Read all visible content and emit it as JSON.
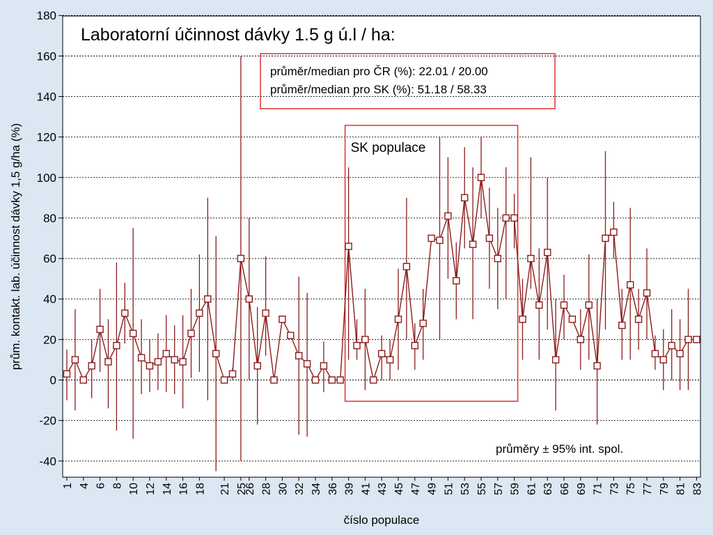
{
  "chart_data": {
    "type": "line",
    "title": "Laboratorní účinnost dávky 1.5 g ú.l / ha:",
    "xlabel": "číslo populace",
    "ylabel": "prům. kontakt. lab. účinnost dávky 1,5 g/ha (%)",
    "ylim": [
      -45,
      180
    ],
    "yticks": [
      -40,
      -20,
      0,
      20,
      40,
      60,
      80,
      100,
      120,
      140,
      160,
      180
    ],
    "stats_box": [
      "průměr/median pro ČR (%): 22.01 / 20.00",
      "průměr/median pro SK (%): 51.18 / 58.33"
    ],
    "region_label": "SK populace",
    "region_start": "39",
    "region_end": "59",
    "legend_note": "průměry ± 95% int. spol.",
    "colors": {
      "series": "#8b1a1a",
      "highlight": "#e03030",
      "background": "#dbe7f3",
      "plot": "#ffffff"
    },
    "categories": [
      "1",
      "2",
      "4",
      "5",
      "6",
      "7",
      "8",
      "9",
      "10",
      "11",
      "12",
      "13",
      "14",
      "15",
      "16",
      "17",
      "18",
      "19",
      "20",
      "21",
      "22",
      "25",
      "26",
      "27",
      "28",
      "29",
      "30",
      "31",
      "32",
      "33",
      "34",
      "35",
      "36",
      "38",
      "39",
      "40",
      "41",
      "42",
      "43",
      "44",
      "45",
      "46",
      "47",
      "48",
      "49",
      "50",
      "51",
      "52",
      "53",
      "54",
      "55",
      "56",
      "57",
      "58",
      "59",
      "60",
      "61",
      "62",
      "63",
      "64",
      "66",
      "67",
      "69",
      "70",
      "71",
      "72",
      "73",
      "74",
      "75",
      "76",
      "77",
      "78",
      "79",
      "80",
      "81",
      "82",
      "83"
    ],
    "tick_labels": [
      "1",
      "4",
      "6",
      "8",
      "10",
      "12",
      "14",
      "16",
      "18",
      "21",
      "25",
      "26",
      "28",
      "30",
      "32",
      "34",
      "36",
      "39",
      "41",
      "43",
      "45",
      "47",
      "49",
      "51",
      "53",
      "55",
      "57",
      "59",
      "61",
      "63",
      "66",
      "69",
      "71",
      "73",
      "75",
      "77",
      "79",
      "81",
      "83"
    ],
    "tick_positions": [
      "1",
      "4",
      "6",
      "8",
      "10",
      "12",
      "14",
      "16",
      "18",
      "21",
      "25",
      "26",
      "28",
      "30",
      "32",
      "34",
      "36",
      "39",
      "41",
      "43",
      "45",
      "47",
      "49",
      "51",
      "53",
      "55",
      "57",
      "59",
      "61",
      "63",
      "66",
      "69",
      "71",
      "73",
      "75",
      "77",
      "79",
      "81",
      "83"
    ],
    "series": [
      {
        "mean": [
          3,
          10,
          0,
          7,
          25,
          9,
          17,
          33,
          23,
          11,
          7,
          9,
          13,
          10,
          9,
          23,
          33,
          40,
          13,
          0,
          3,
          60,
          40,
          7,
          33,
          0,
          30,
          22,
          12,
          8,
          0,
          7,
          0,
          0,
          66,
          17,
          20,
          0,
          13,
          10,
          30,
          56,
          17,
          28,
          70,
          69,
          81,
          49,
          90,
          67,
          100,
          70,
          60,
          80,
          80,
          30,
          60,
          37,
          63,
          10,
          37,
          30,
          20,
          37,
          7,
          70,
          73,
          27,
          47,
          30,
          43,
          13,
          10,
          17,
          13,
          20,
          20
        ],
        "lower": [
          -10,
          -15,
          0,
          -9,
          4,
          -14,
          -25,
          18,
          -29,
          -7,
          -6,
          -5,
          -6,
          -7,
          -14,
          1,
          4,
          -10,
          -45,
          0,
          0,
          -40,
          0,
          -22,
          12,
          0,
          30,
          22,
          -27,
          -28,
          0,
          -6,
          0,
          0,
          10,
          10,
          -5,
          0,
          0,
          0,
          5,
          20,
          5,
          10,
          70,
          20,
          50,
          30,
          65,
          30,
          80,
          45,
          35,
          40,
          65,
          10,
          45,
          10,
          25,
          -15,
          20,
          30,
          5,
          10,
          -22,
          25,
          60,
          10,
          10,
          15,
          20,
          5,
          -5,
          0,
          -5,
          -5,
          20
        ],
        "upper": [
          15,
          35,
          0,
          20,
          45,
          30,
          58,
          48,
          75,
          30,
          20,
          23,
          32,
          27,
          32,
          45,
          62,
          90,
          71,
          0,
          6,
          160,
          80,
          36,
          61,
          0,
          30,
          22,
          51,
          43,
          0,
          19,
          0,
          0,
          105,
          30,
          45,
          0,
          22,
          20,
          55,
          90,
          28,
          45,
          70,
          120,
          110,
          68,
          115,
          105,
          120,
          95,
          85,
          105,
          92,
          50,
          110,
          65,
          100,
          40,
          52,
          30,
          35,
          62,
          40,
          113,
          88,
          45,
          85,
          45,
          65,
          22,
          25,
          35,
          30,
          45,
          20
        ]
      }
    ]
  }
}
